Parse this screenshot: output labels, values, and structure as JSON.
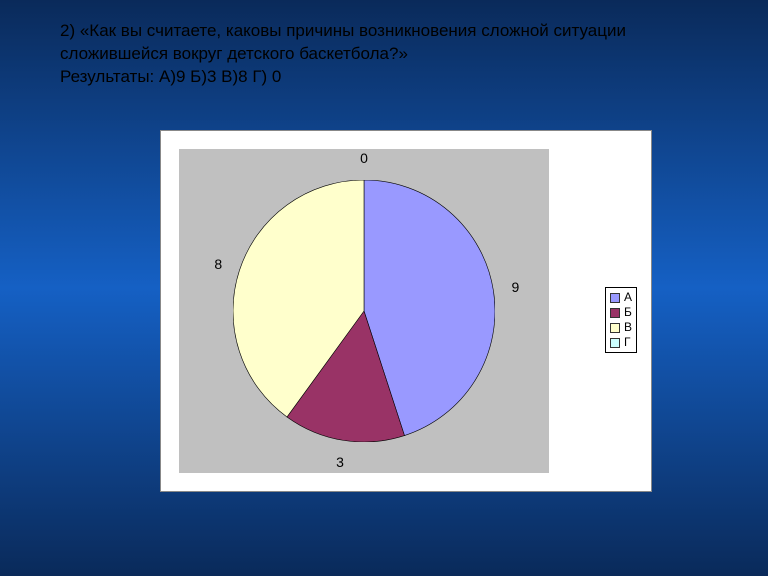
{
  "question": {
    "line1": "2) «Как вы считаете, каковы причины возникновения сложной ситуации",
    "line2": "сложившейся вокруг детского баскетбола?»",
    "line3": "Результаты: А)9  Б)3  В)8 Г) 0"
  },
  "chart": {
    "type": "pie",
    "background_color": "#ffffff",
    "plot_background": "#c0c0c0",
    "slices": [
      {
        "key": "А",
        "value": 9,
        "color": "#9999ff",
        "label": "9"
      },
      {
        "key": "Б",
        "value": 3,
        "color": "#993366",
        "label": "3"
      },
      {
        "key": "В",
        "value": 8,
        "color": "#ffffcc",
        "label": "8"
      },
      {
        "key": "Г",
        "value": 0,
        "color": "#ccffff",
        "label": "0"
      }
    ],
    "stroke": "#000000",
    "stroke_width": 0.6,
    "start_angle_deg": -90,
    "label_font_size": 14,
    "label_color": "#000000",
    "label_radius_factor": 1.17,
    "zero_label_offset_deg": 0,
    "legend": {
      "border_color": "#000000",
      "font_size": 12,
      "items": [
        {
          "label": "А",
          "color": "#9999ff"
        },
        {
          "label": "Б",
          "color": "#993366"
        },
        {
          "label": "В",
          "color": "#ffffcc"
        },
        {
          "label": "Г",
          "color": "#ccffff"
        }
      ]
    }
  }
}
